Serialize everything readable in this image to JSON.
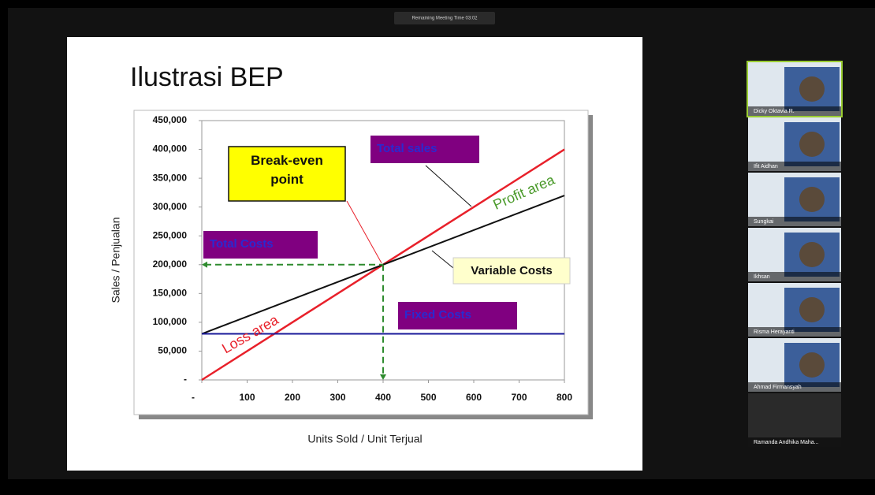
{
  "meeting": {
    "timer": "Remaining Meeting Time 03:02"
  },
  "slide": {
    "title": "Ilustrasi BEP",
    "chart": {
      "type": "line",
      "x_label": "Units Sold / Unit Terjual",
      "y_label": "Sales / Penjualan",
      "xlim": [
        0,
        800
      ],
      "xticks": [
        {
          "value": 0,
          "label": "-"
        },
        100,
        200,
        300,
        400,
        500,
        600,
        700,
        800
      ],
      "ylim": [
        0,
        450000
      ],
      "yticks": [
        {
          "value": 0,
          "label": "-"
        },
        {
          "value": 50000,
          "label": "50,000"
        },
        {
          "value": 100000,
          "label": "100,000"
        },
        {
          "value": 150000,
          "label": "150,000"
        },
        {
          "value": 200000,
          "label": "200,000"
        },
        {
          "value": 250000,
          "label": "250,000"
        },
        {
          "value": 300000,
          "label": "300,000"
        },
        {
          "value": 350000,
          "label": "350,000"
        },
        {
          "value": 400000,
          "label": "400,000"
        },
        {
          "value": 450000,
          "label": "450,000"
        }
      ],
      "series": [
        {
          "name": "Total sales",
          "color": "#e8202a",
          "x": [
            0,
            800
          ],
          "values": [
            0,
            400000
          ]
        },
        {
          "name": "Total Costs",
          "color": "#111111",
          "x": [
            0,
            800
          ],
          "values": [
            80000,
            320000
          ]
        },
        {
          "name": "Fixed Costs",
          "color": "#1a1a9a",
          "x": [
            0,
            800
          ],
          "values": [
            80000,
            80000
          ]
        }
      ],
      "break_even": {
        "label": "Break-even point",
        "x": 400,
        "y": 200000
      },
      "annotations": {
        "variable_costs": "Variable Costs",
        "profit_area": "Profit area",
        "loss_area": "Loss area"
      }
    }
  },
  "participants": [
    "Dicky Oktavia R.",
    "Ifit Aidhan",
    "Sungkai",
    "Ikhsan",
    "Risma Herayanti",
    "Ahmad Firmansyah",
    "Ramanda Andhika Maha..."
  ]
}
